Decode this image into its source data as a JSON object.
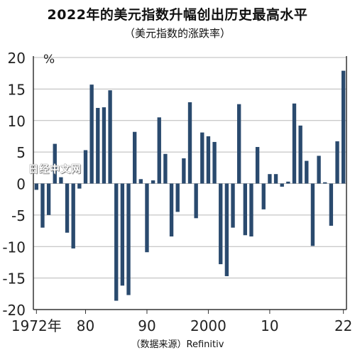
{
  "header": {
    "title": "2022年的美元指数升幅创出历史最高水平",
    "subtitle": "（美元指数的涨跌率）"
  },
  "watermark": "日经中文网",
  "footer": {
    "source": "（数据来源）Refinitiv"
  },
  "colors": {
    "bar": "#2a4a6e",
    "grid": "#b8b8b8",
    "axis": "#333333"
  },
  "chart_data": {
    "type": "bar",
    "title": "2022年的美元指数升幅创出历史最高水平",
    "subtitle": "（美元指数的涨跌率）",
    "unit": "%",
    "grid": true,
    "ylim": [
      -20,
      20
    ],
    "yticks": [
      20,
      15,
      10,
      5,
      0,
      -5,
      -10,
      -15,
      -20
    ],
    "xtick_labels": [
      {
        "year": 1972,
        "label": "1972年"
      },
      {
        "year": 1980,
        "label": "80"
      },
      {
        "year": 1990,
        "label": "90"
      },
      {
        "year": 2000,
        "label": "2000"
      },
      {
        "year": 2010,
        "label": "10"
      },
      {
        "year": 2022,
        "label": "22"
      }
    ],
    "categories": [
      1972,
      1973,
      1974,
      1975,
      1976,
      1977,
      1978,
      1979,
      1980,
      1981,
      1982,
      1983,
      1984,
      1985,
      1986,
      1987,
      1988,
      1989,
      1990,
      1991,
      1992,
      1993,
      1994,
      1995,
      1996,
      1997,
      1998,
      1999,
      2000,
      2001,
      2002,
      2003,
      2004,
      2005,
      2006,
      2007,
      2008,
      2009,
      2010,
      2011,
      2012,
      2013,
      2014,
      2015,
      2016,
      2017,
      2018,
      2019,
      2020,
      2021,
      2022
    ],
    "values": [
      -1.0,
      -7.0,
      -5.0,
      6.3,
      1.0,
      -7.8,
      -10.3,
      -0.8,
      5.3,
      15.7,
      12.0,
      12.1,
      14.8,
      -18.6,
      -16.2,
      -17.7,
      8.2,
      0.7,
      -10.9,
      0.5,
      10.5,
      4.7,
      -8.4,
      -4.5,
      4.0,
      12.9,
      -5.5,
      8.1,
      7.5,
      6.6,
      -12.8,
      -14.7,
      -7.0,
      12.6,
      -8.2,
      -8.4,
      5.8,
      -4.1,
      1.5,
      1.5,
      -0.5,
      0.3,
      12.7,
      9.2,
      3.6,
      -9.9,
      4.4,
      0.2,
      -6.7,
      6.7,
      17.9
    ]
  }
}
